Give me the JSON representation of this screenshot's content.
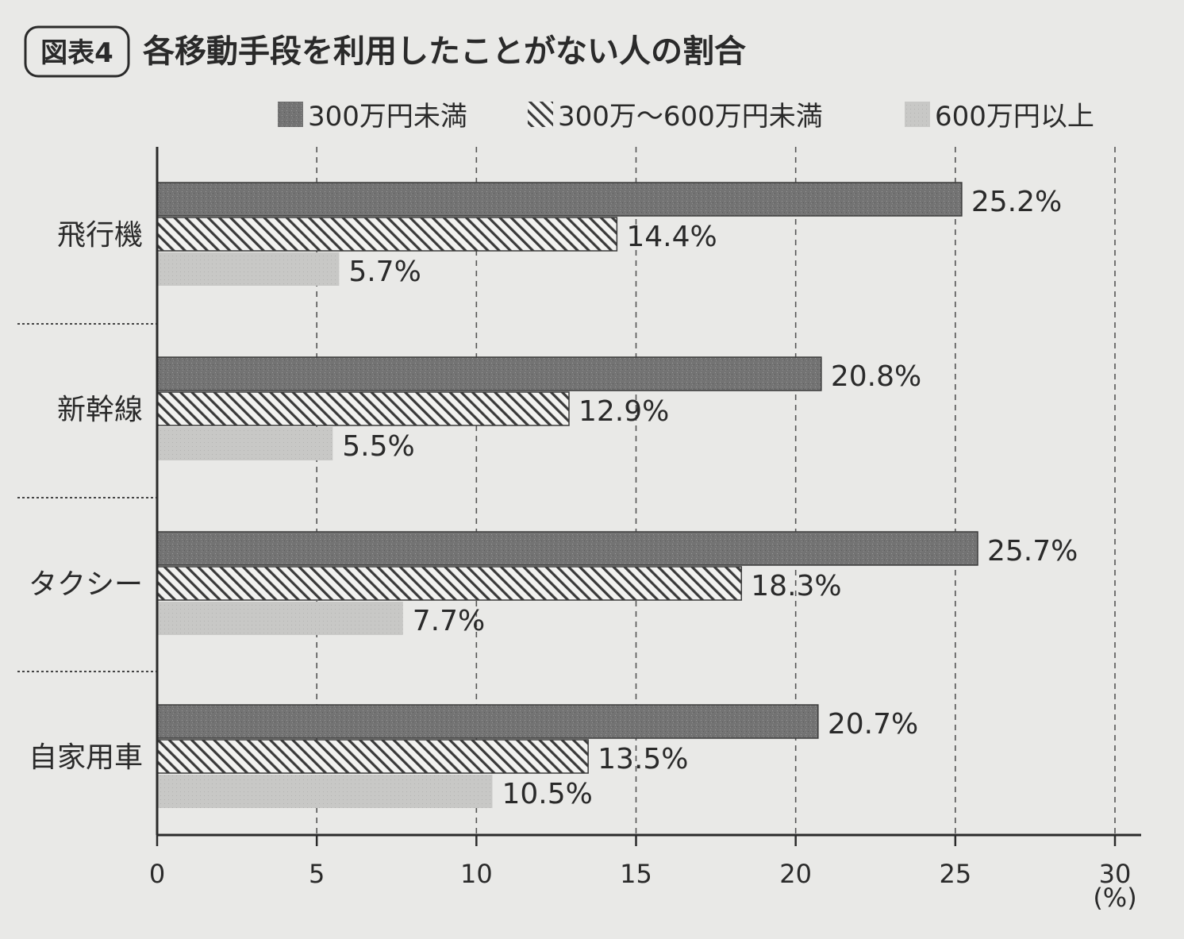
{
  "figure_label": "図表4",
  "chart_data": {
    "type": "bar",
    "orientation": "horizontal",
    "title": "各移動手段を利用したことがない人の割合",
    "categories": [
      "飛行機",
      "新幹線",
      "タクシー",
      "自家用車"
    ],
    "series": [
      {
        "name": "300万円未満",
        "values": [
          25.2,
          20.8,
          25.7,
          20.7
        ],
        "color": "#6f6f6f",
        "pattern": "speckled"
      },
      {
        "name": "300万〜600万円未満",
        "values": [
          14.4,
          12.9,
          18.3,
          13.5
        ],
        "color": "#3a3a3a",
        "pattern": "diagonal-hatch"
      },
      {
        "name": "600万円以上",
        "values": [
          5.7,
          5.5,
          7.7,
          10.5
        ],
        "color": "#c6c6c4",
        "pattern": "light-fill"
      }
    ],
    "value_labels": [
      [
        "25.2%",
        "20.8%",
        "25.7%",
        "20.7%"
      ],
      [
        "14.4%",
        "12.9%",
        "18.3%",
        "13.5%"
      ],
      [
        "5.7%",
        "5.5%",
        "7.7%",
        "10.5%"
      ]
    ],
    "xlim": [
      0,
      30
    ],
    "xticks": [
      "0",
      "5",
      "10",
      "15",
      "20",
      "25",
      "30"
    ],
    "xunit": "(%)",
    "grid": "vertical-dashed",
    "legend_position": "top-right"
  }
}
